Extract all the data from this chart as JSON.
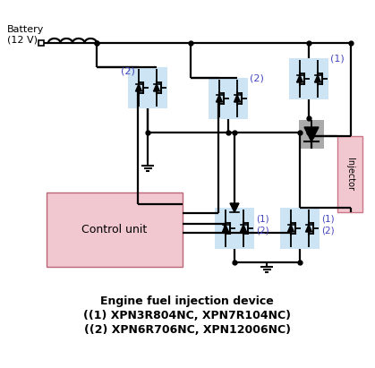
{
  "bg_color": "#ffffff",
  "title_lines": [
    "Engine fuel injection device",
    "((1) XPN3R804NC, XPN7R104NC)",
    "((2) XPN6R706NC, XPN12006NC)"
  ],
  "title_fontsize": 9.0,
  "label_color": "#4444bb",
  "component_bg": "#cce4f4",
  "control_bg": "#f2c8d0",
  "injector_bg": "#f2c8d0",
  "line_color": "#000000",
  "wire_lw": 1.6,
  "battery_label": "Battery\n(12 V)"
}
